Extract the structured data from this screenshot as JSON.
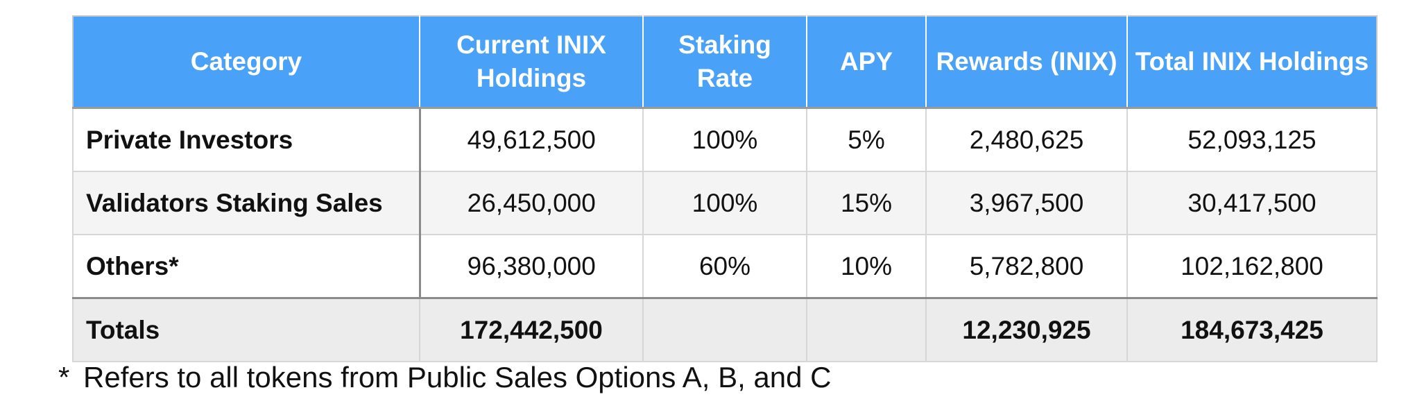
{
  "table": {
    "headers": [
      "Category",
      "Current INIX Holdings",
      "Staking Rate",
      "APY",
      "Rewards (INIX)",
      "Total INIX Holdings"
    ],
    "rows": [
      {
        "category": "Private Investors",
        "current": "49,612,500",
        "rate": "100%",
        "apy": "5%",
        "rewards": "2,480,625",
        "total": "52,093,125"
      },
      {
        "category": "Validators Staking Sales",
        "current": "26,450,000",
        "rate": "100%",
        "apy": "15%",
        "rewards": "3,967,500",
        "total": "30,417,500"
      },
      {
        "category": "Others*",
        "current": "96,380,000",
        "rate": "60%",
        "apy": "10%",
        "rewards": "5,782,800",
        "total": "102,162,800"
      }
    ],
    "totals": {
      "label": "Totals",
      "current": "172,442,500",
      "rate": "",
      "apy": "",
      "rewards": "12,230,925",
      "total": "184,673,425"
    }
  },
  "footnote": {
    "marker": "*",
    "text": "Refers to all tokens from Public Sales Options A, B, and C"
  },
  "colors": {
    "header_bg": "#4aa1f8",
    "header_text": "#ffffff",
    "totals_bg": "#ececec",
    "alt_row_bg": "#f4f4f4"
  }
}
